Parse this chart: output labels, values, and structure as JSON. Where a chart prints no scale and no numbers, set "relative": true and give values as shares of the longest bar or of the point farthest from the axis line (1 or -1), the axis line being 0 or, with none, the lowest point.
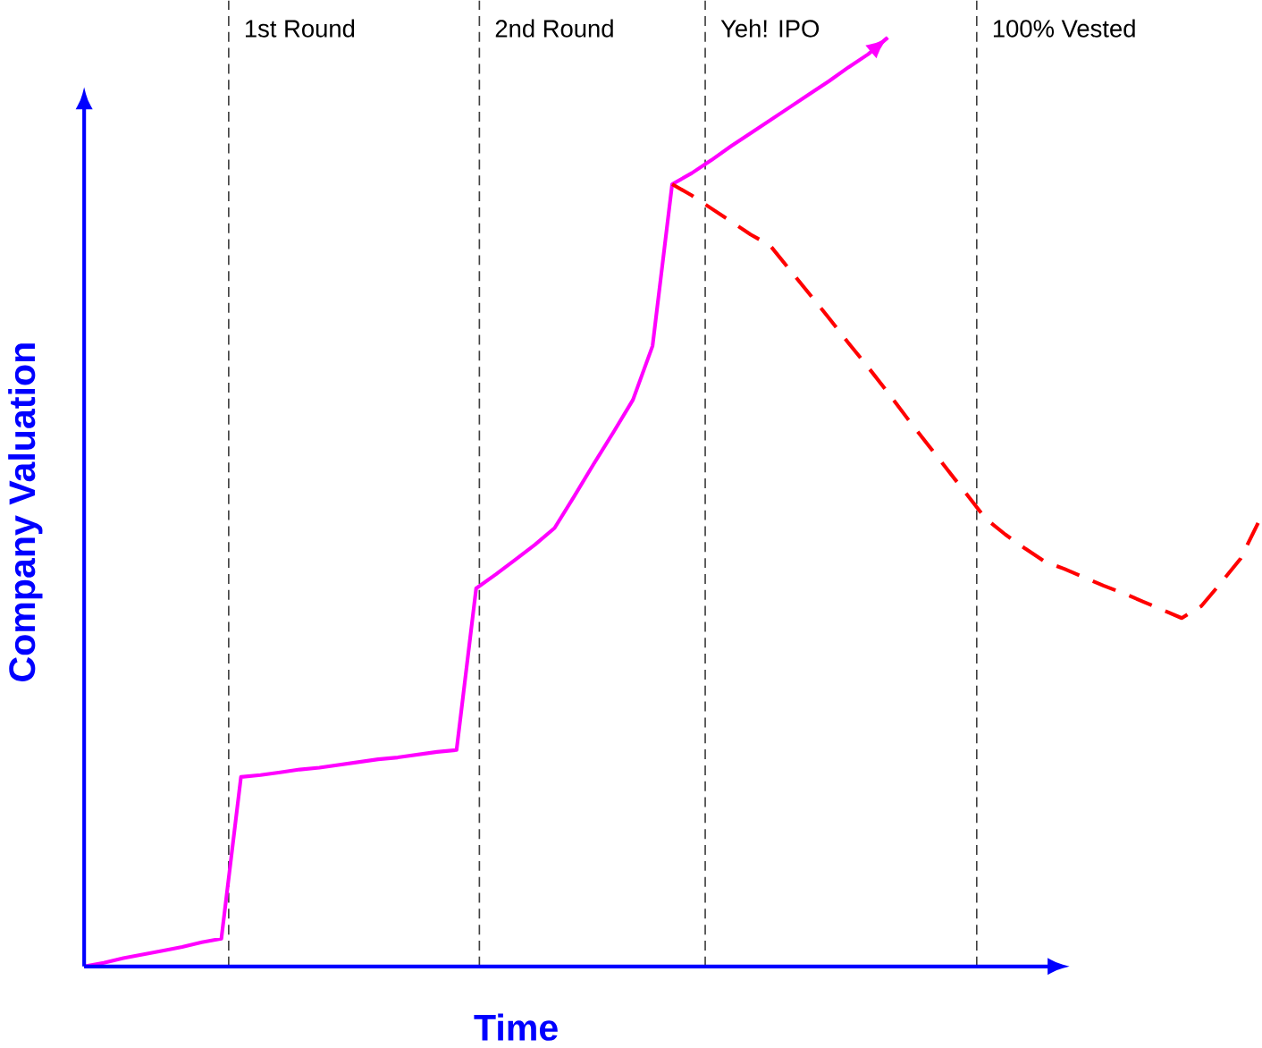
{
  "chart_data": {
    "type": "line",
    "relative": true,
    "xlabel": "Time",
    "ylabel": "Company Valuation",
    "categories": [
      null,
      null,
      null,
      null,
      null,
      null,
      null,
      null,
      null,
      null,
      null,
      "1st Round",
      null,
      null,
      null,
      null,
      null,
      null,
      null,
      null,
      null,
      null,
      null,
      null,
      "2nd Round",
      null,
      null,
      null,
      null,
      null,
      null,
      null,
      null,
      null,
      null,
      "Yeh! IPO",
      null,
      null,
      null,
      null,
      null,
      null,
      null,
      null,
      null,
      null,
      null,
      null,
      null,
      null,
      "100% Vested",
      null,
      null,
      null,
      null,
      null,
      null,
      null,
      null,
      null,
      null
    ],
    "series": [
      {
        "color": "#ff00ff",
        "line_style": "solid",
        "values": [
          0,
          0.004,
          0.009,
          0.013,
          0.017,
          0.021,
          0.026,
          0.03,
          0.204,
          0.206,
          0.209,
          0.212,
          0.214,
          0.217,
          0.22,
          0.223,
          0.225,
          0.228,
          0.231,
          0.233,
          0.407,
          0.422,
          0.438,
          0.454,
          0.472,
          0.506,
          0.541,
          0.575,
          0.61,
          0.668,
          0.842,
          0.854,
          0.868,
          0.883,
          0.897,
          0.911,
          0.925,
          0.939,
          0.953,
          0.968,
          0.982,
          1,
          null,
          null,
          null,
          null,
          null,
          null,
          null,
          null,
          null,
          null,
          null,
          null,
          null,
          null,
          null,
          null,
          null,
          null,
          null
        ]
      },
      {
        "color": "#ff0000",
        "line_style": "dashed",
        "values": [
          null,
          null,
          null,
          null,
          null,
          null,
          null,
          null,
          null,
          null,
          null,
          null,
          null,
          null,
          null,
          null,
          null,
          null,
          null,
          null,
          null,
          null,
          null,
          null,
          null,
          null,
          null,
          null,
          null,
          null,
          0.842,
          0.83,
          0.816,
          0.802,
          0.788,
          0.776,
          0.75,
          0.724,
          0.698,
          0.671,
          0.645,
          0.618,
          0.59,
          0.563,
          0.536,
          0.509,
          0.482,
          0.465,
          0.45,
          0.436,
          0.428,
          0.419,
          0.41,
          0.402,
          0.393,
          0.384,
          0.375,
          0.388,
          0.413,
          0.439,
          0.482
        ]
      }
    ]
  }
}
